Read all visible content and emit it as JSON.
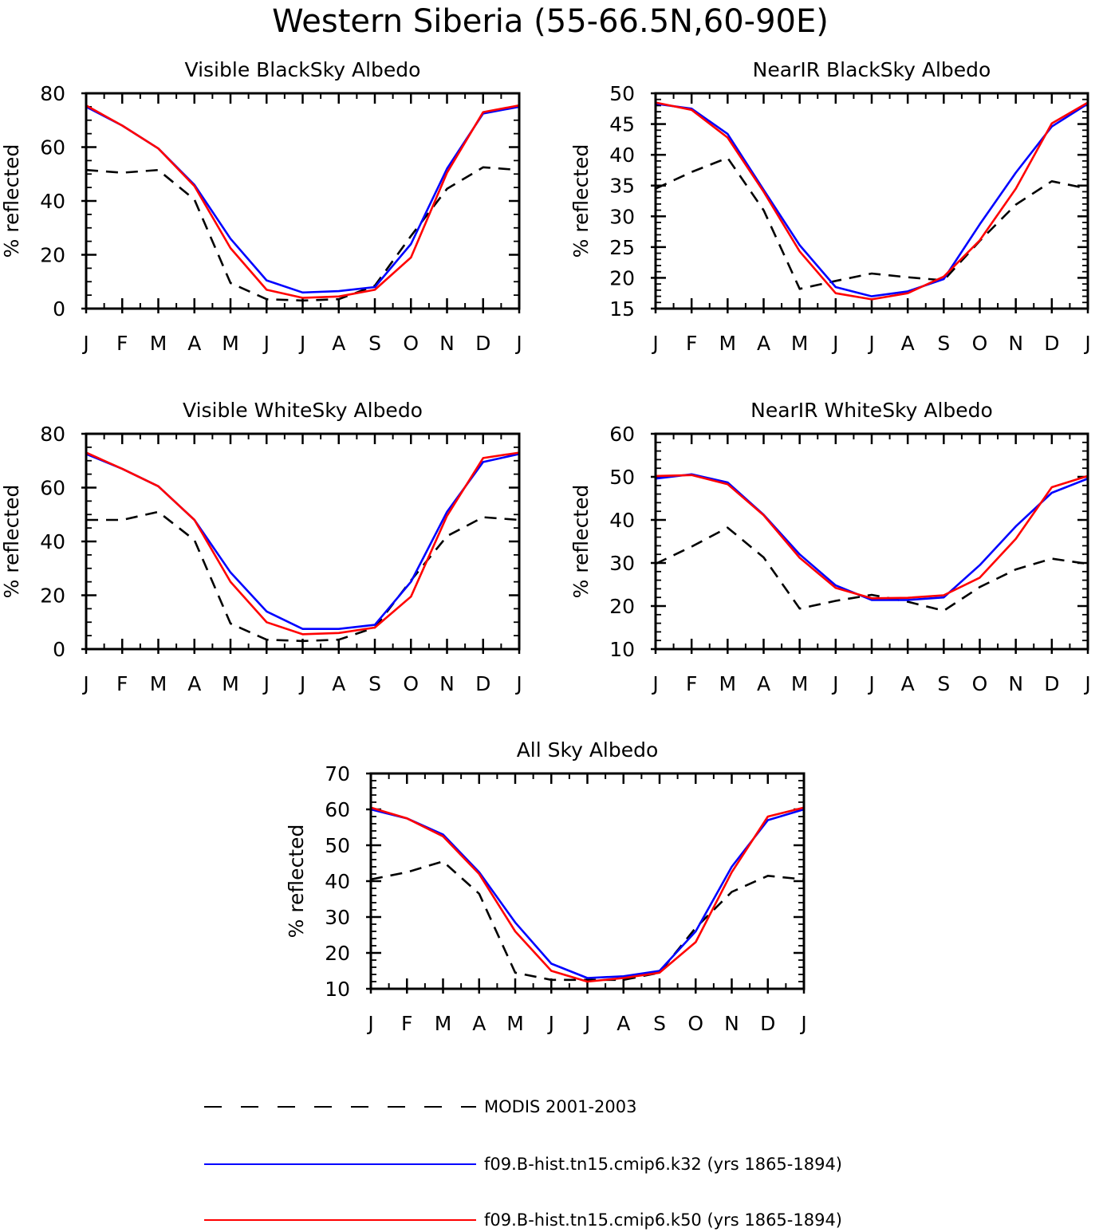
{
  "figure_title": "Western Siberia (55-66.5N,60-90E)",
  "series_styles": {
    "modis": {
      "color": "#000000",
      "dash": "dashed"
    },
    "k32": {
      "color": "#0000ff",
      "dash": "solid"
    },
    "k50": {
      "color": "#ff0000",
      "dash": "solid"
    }
  },
  "legend": [
    {
      "key": "modis",
      "label": "MODIS 2001-2003"
    },
    {
      "key": "k32",
      "label": "f09.B-hist.tn15.cmip6.k32 (yrs 1865-1894)"
    },
    {
      "key": "k50",
      "label": "f09.B-hist.tn15.cmip6.k50 (yrs 1865-1894)"
    }
  ],
  "chart_data": [
    {
      "type": "line",
      "title": "Visible BlackSky Albedo",
      "ylabel": "% reflected",
      "categories": [
        "J",
        "F",
        "M",
        "A",
        "M",
        "J",
        "J",
        "A",
        "S",
        "O",
        "N",
        "D",
        "J"
      ],
      "ylim": [
        0,
        80
      ],
      "yticks": [
        0,
        20,
        40,
        60,
        80
      ],
      "series": [
        {
          "key": "modis",
          "values": [
            51.5,
            50.5,
            51.5,
            40.5,
            9.5,
            3.5,
            3,
            3.5,
            8.5,
            27,
            44.5,
            52.5,
            51.5
          ]
        },
        {
          "key": "k32",
          "values": [
            75,
            68,
            59.5,
            46,
            26,
            10.5,
            6,
            6.5,
            8,
            24,
            52,
            72.5,
            75
          ]
        },
        {
          "key": "k50",
          "values": [
            75.5,
            68,
            59.5,
            45.5,
            22.5,
            7,
            4,
            4.5,
            7,
            19,
            50.5,
            73,
            75.5
          ]
        }
      ]
    },
    {
      "type": "line",
      "title": "NearIR BlackSky Albedo",
      "ylabel": "% reflected",
      "categories": [
        "J",
        "F",
        "M",
        "A",
        "M",
        "J",
        "J",
        "A",
        "S",
        "O",
        "N",
        "D",
        "J"
      ],
      "ylim": [
        15,
        50
      ],
      "yticks": [
        15,
        20,
        25,
        30,
        35,
        40,
        45,
        50
      ],
      "series": [
        {
          "key": "modis",
          "values": [
            34.5,
            37.2,
            39.5,
            31,
            18.2,
            19.5,
            20.7,
            20.1,
            19.6,
            26,
            31.9,
            35.7,
            34.5
          ]
        },
        {
          "key": "k32",
          "values": [
            48.3,
            47.5,
            43.4,
            34.3,
            25.3,
            18.5,
            17,
            17.8,
            19.8,
            28.7,
            37.1,
            44.6,
            48.3
          ]
        },
        {
          "key": "k50",
          "values": [
            48.5,
            47.3,
            42.8,
            34,
            24.3,
            17.5,
            16.5,
            17.5,
            20.2,
            26.1,
            34.5,
            45.1,
            48.5
          ]
        }
      ]
    },
    {
      "type": "line",
      "title": "Visible WhiteSky Albedo",
      "ylabel": "% reflected",
      "categories": [
        "J",
        "F",
        "M",
        "A",
        "M",
        "J",
        "J",
        "A",
        "S",
        "O",
        "N",
        "D",
        "J"
      ],
      "ylim": [
        0,
        80
      ],
      "yticks": [
        0,
        20,
        40,
        60,
        80
      ],
      "series": [
        {
          "key": "modis",
          "values": [
            48,
            48,
            51,
            40.5,
            9.5,
            3.5,
            3,
            3.5,
            8,
            25.5,
            42,
            49,
            48
          ]
        },
        {
          "key": "k32",
          "values": [
            72.5,
            67,
            60.5,
            48,
            28.5,
            14,
            7.5,
            7.5,
            9,
            25,
            51,
            69.5,
            72.5
          ]
        },
        {
          "key": "k50",
          "values": [
            73,
            67,
            60.5,
            48,
            25,
            10,
            5.5,
            6,
            8,
            19.5,
            49.5,
            71,
            73
          ]
        }
      ]
    },
    {
      "type": "line",
      "title": "NearIR WhiteSky Albedo",
      "ylabel": "% reflected",
      "categories": [
        "J",
        "F",
        "M",
        "A",
        "M",
        "J",
        "J",
        "A",
        "S",
        "O",
        "N",
        "D",
        "J"
      ],
      "ylim": [
        10,
        60
      ],
      "yticks": [
        10,
        20,
        30,
        40,
        50,
        60
      ],
      "series": [
        {
          "key": "modis",
          "values": [
            29.8,
            33.8,
            38.2,
            31.3,
            19.4,
            21.2,
            22.6,
            21,
            18.9,
            24.4,
            28.5,
            31,
            29.8
          ]
        },
        {
          "key": "k32",
          "values": [
            49.6,
            50.6,
            48.7,
            41.2,
            32,
            24.8,
            21.4,
            21.4,
            22,
            29.5,
            38.5,
            46.3,
            49.6
          ]
        },
        {
          "key": "k50",
          "values": [
            50.2,
            50.4,
            48.3,
            41.1,
            31.2,
            24.2,
            21.8,
            21.9,
            22.5,
            26.6,
            35.6,
            47.6,
            50.2
          ]
        }
      ]
    },
    {
      "type": "line",
      "title": "All Sky Albedo",
      "ylabel": "% reflected",
      "categories": [
        "J",
        "F",
        "M",
        "A",
        "M",
        "J",
        "J",
        "A",
        "S",
        "O",
        "N",
        "D",
        "J"
      ],
      "ylim": [
        10,
        70
      ],
      "yticks": [
        10,
        20,
        30,
        40,
        50,
        60,
        70
      ],
      "series": [
        {
          "key": "modis",
          "values": [
            40.5,
            42.5,
            45.5,
            36.5,
            14.5,
            12.5,
            12.5,
            12.5,
            14.5,
            27,
            37,
            41.5,
            40.5
          ]
        },
        {
          "key": "k32",
          "values": [
            60,
            57.5,
            53,
            42.5,
            28.5,
            17,
            13,
            13.5,
            15,
            26,
            44,
            57,
            60
          ]
        },
        {
          "key": "k50",
          "values": [
            60.5,
            57.5,
            52.5,
            42,
            26,
            15,
            12,
            13,
            14.5,
            23,
            42.5,
            58,
            60.5
          ]
        }
      ]
    }
  ]
}
